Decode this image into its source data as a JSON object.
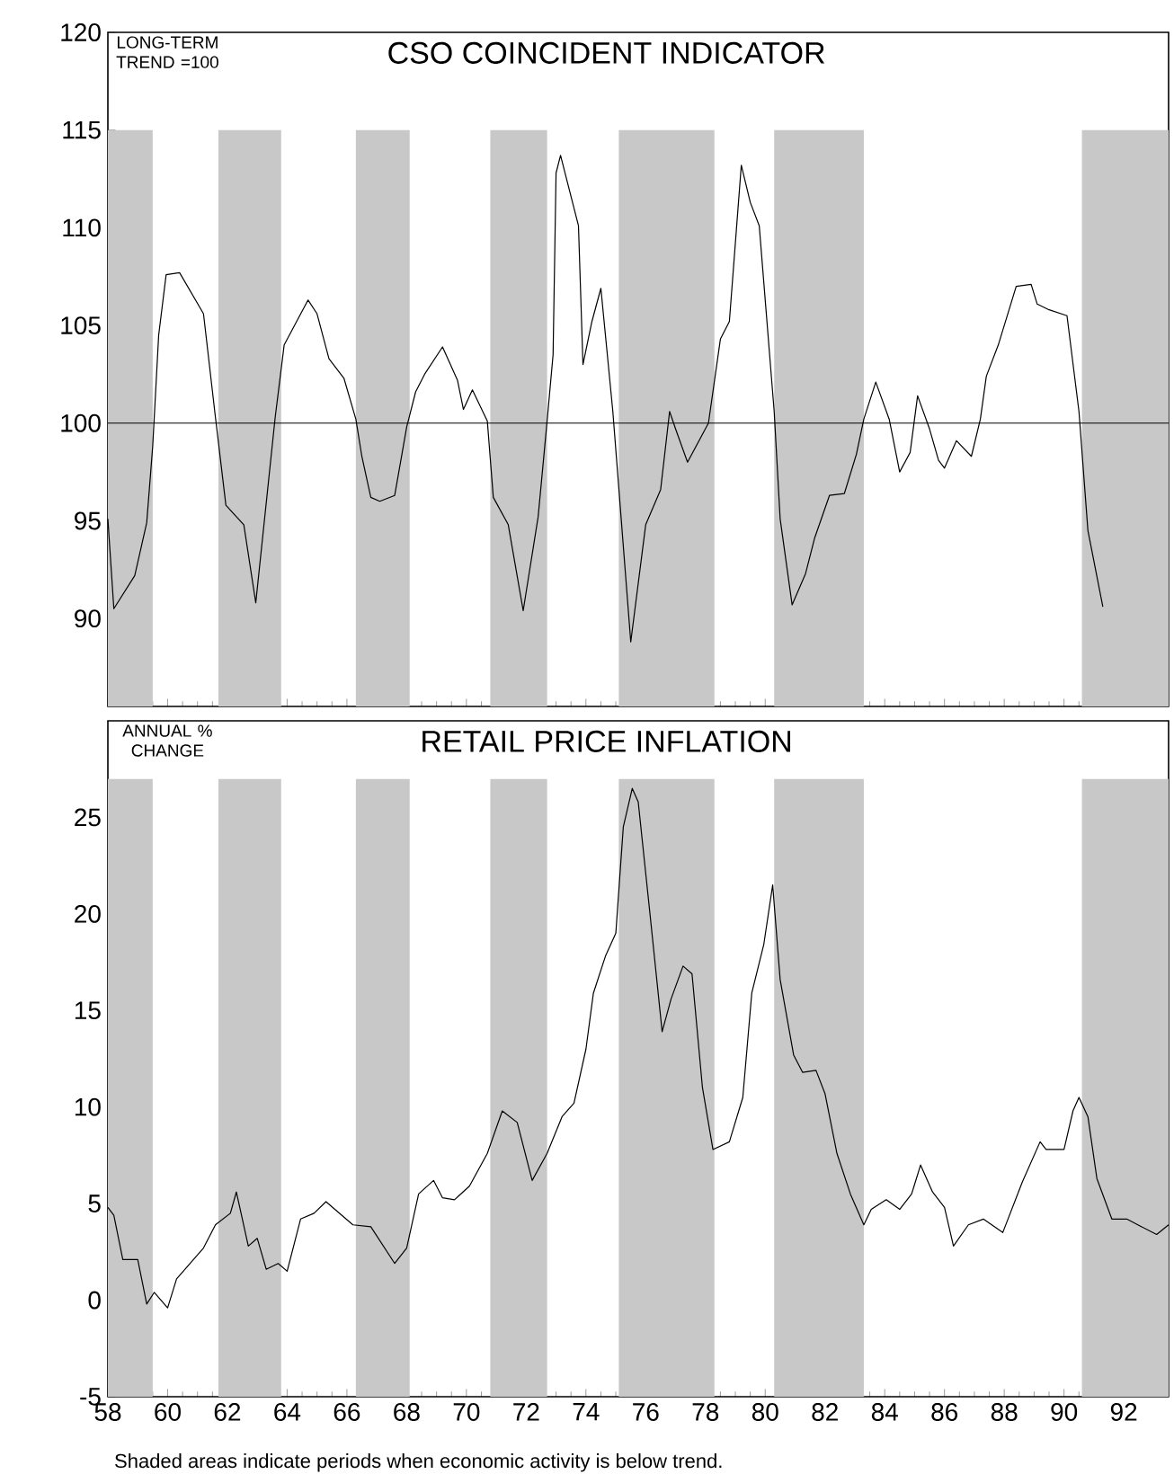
{
  "chart_data": [
    {
      "type": "line",
      "title": "CSO COINCIDENT INDICATOR",
      "ylabel": "LONG-TERM TREND =100",
      "x": [
        58.0,
        58.2,
        58.9,
        59.3,
        59.5,
        59.7,
        59.95,
        60.4,
        61.2,
        61.6,
        61.95,
        62.55,
        62.95,
        63.6,
        63.9,
        64.7,
        65.0,
        65.4,
        65.9,
        66.3,
        66.5,
        66.8,
        67.1,
        67.6,
        68.0,
        68.3,
        68.6,
        69.2,
        69.7,
        69.9,
        70.2,
        70.7,
        70.9,
        71.4,
        71.9,
        72.4,
        72.7,
        72.9,
        73.0,
        73.15,
        73.75,
        73.9,
        74.2,
        74.5,
        74.9,
        75.5,
        76.0,
        76.5,
        76.8,
        77.0,
        77.4,
        78.1,
        78.5,
        78.8,
        79.2,
        79.5,
        79.8,
        80.3,
        80.5,
        80.9,
        81.35,
        81.65,
        82.15,
        82.65,
        83.05,
        83.3,
        83.7,
        84.15,
        84.5,
        84.85,
        85.1,
        85.5,
        85.8,
        86.0,
        86.4,
        86.9,
        87.2,
        87.4,
        87.8,
        88.4,
        88.9,
        89.1,
        89.5,
        90.1,
        90.5,
        90.8,
        91.3
      ],
      "values": [
        95.1,
        90.5,
        92.2,
        94.9,
        98.8,
        104.5,
        107.6,
        107.7,
        105.6,
        100.3,
        95.8,
        94.8,
        90.8,
        100.3,
        104.0,
        106.3,
        105.6,
        103.3,
        102.3,
        100.2,
        98.3,
        96.2,
        96.0,
        96.3,
        99.8,
        101.6,
        102.5,
        103.9,
        102.2,
        100.7,
        101.7,
        100.1,
        96.2,
        94.8,
        90.4,
        95.2,
        100.1,
        103.5,
        112.8,
        113.7,
        110.1,
        103.0,
        105.2,
        106.9,
        100.6,
        88.8,
        94.8,
        96.6,
        100.6,
        99.7,
        98.0,
        100.0,
        104.3,
        105.2,
        113.2,
        111.3,
        110.1,
        100.6,
        95.1,
        90.7,
        92.3,
        94.1,
        96.3,
        96.4,
        98.4,
        100.2,
        102.1,
        100.2,
        97.5,
        98.5,
        101.4,
        99.7,
        98.1,
        97.7,
        99.1,
        98.3,
        100.2,
        102.4,
        104.0,
        107.0,
        107.1,
        106.1,
        105.8,
        105.5,
        100.6,
        94.5,
        90.6
      ],
      "color": "#000000",
      "xlim": [
        58,
        93.5
      ],
      "xticks": [
        58,
        60,
        62,
        64,
        66,
        68,
        70,
        72,
        74,
        76,
        78,
        80,
        82,
        84,
        86,
        88,
        90,
        92
      ],
      "ylim": [
        85.5,
        120
      ],
      "yticks": [
        90,
        95,
        100,
        105,
        110,
        115,
        120
      ],
      "tick_labels": "y",
      "ref_lines": [
        {
          "axis": "y",
          "value": 100
        }
      ],
      "bands": [
        {
          "axis": "x",
          "from": 58.0,
          "to": 59.5,
          "color": "#c8c8c8"
        },
        {
          "axis": "x",
          "from": 61.7,
          "to": 63.8,
          "color": "#c8c8c8"
        },
        {
          "axis": "x",
          "from": 66.3,
          "to": 68.1,
          "color": "#c8c8c8"
        },
        {
          "axis": "x",
          "from": 70.8,
          "to": 72.7,
          "color": "#c8c8c8"
        },
        {
          "axis": "x",
          "from": 75.1,
          "to": 78.3,
          "color": "#c8c8c8"
        },
        {
          "axis": "x",
          "from": 80.3,
          "to": 83.3,
          "color": "#c8c8c8"
        },
        {
          "axis": "x",
          "from": 90.6,
          "to": 93.5,
          "color": "#c8c8c8"
        }
      ]
    },
    {
      "type": "line",
      "title": "RETAIL PRICE INFLATION",
      "ylabel": "ANNUAL % CHANGE",
      "x": [
        58.0,
        58.2,
        58.5,
        59.0,
        59.3,
        59.55,
        60.0,
        60.3,
        61.2,
        61.6,
        62.1,
        62.3,
        62.7,
        63.0,
        63.3,
        63.7,
        64.0,
        64.45,
        64.9,
        65.3,
        66.2,
        66.8,
        67.6,
        68.0,
        68.4,
        68.9,
        69.2,
        69.6,
        70.1,
        70.7,
        71.2,
        71.7,
        72.2,
        72.7,
        73.2,
        73.6,
        74.0,
        74.25,
        74.65,
        75.0,
        75.25,
        75.55,
        75.75,
        76.15,
        76.55,
        76.85,
        77.25,
        77.55,
        77.9,
        78.25,
        78.8,
        79.25,
        79.55,
        79.95,
        80.25,
        80.5,
        80.95,
        81.25,
        81.7,
        82.0,
        82.4,
        82.85,
        83.3,
        83.55,
        84.05,
        84.5,
        84.9,
        85.2,
        85.6,
        86.0,
        86.3,
        86.8,
        87.3,
        87.95,
        88.6,
        89.2,
        89.4,
        90.0,
        90.3,
        90.5,
        90.8,
        91.1,
        91.6,
        92.1,
        92.6,
        93.1,
        93.5
      ],
      "values": [
        4.8,
        4.4,
        2.1,
        2.1,
        -0.2,
        0.4,
        -0.4,
        1.1,
        2.7,
        3.9,
        4.5,
        5.6,
        2.8,
        3.2,
        1.6,
        1.9,
        1.5,
        4.2,
        4.5,
        5.1,
        3.9,
        3.8,
        1.9,
        2.7,
        5.5,
        6.2,
        5.3,
        5.2,
        5.9,
        7.6,
        9.8,
        9.2,
        6.2,
        7.6,
        9.5,
        10.2,
        13.0,
        15.9,
        17.8,
        19.0,
        24.5,
        26.5,
        25.8,
        19.9,
        13.9,
        15.6,
        17.3,
        16.9,
        11.0,
        7.8,
        8.2,
        10.5,
        15.9,
        18.4,
        21.5,
        16.6,
        12.7,
        11.8,
        11.9,
        10.7,
        7.6,
        5.5,
        3.9,
        4.7,
        5.2,
        4.7,
        5.5,
        7.0,
        5.6,
        4.8,
        2.8,
        3.9,
        4.2,
        3.5,
        6.1,
        8.2,
        7.8,
        7.8,
        9.8,
        10.5,
        9.5,
        6.3,
        4.2,
        4.2,
        3.8,
        3.4,
        3.9
      ],
      "color": "#000000",
      "xlim": [
        58,
        93.5
      ],
      "xticks": [
        58,
        60,
        62,
        64,
        66,
        68,
        70,
        72,
        74,
        76,
        78,
        80,
        82,
        84,
        86,
        88,
        90,
        92
      ],
      "ylim": [
        -5,
        30
      ],
      "yticks": [
        -5,
        0,
        5,
        10,
        15,
        20,
        25
      ],
      "bands": [
        {
          "axis": "x",
          "from": 58.0,
          "to": 59.5,
          "color": "#c8c8c8"
        },
        {
          "axis": "x",
          "from": 61.7,
          "to": 63.8,
          "color": "#c8c8c8"
        },
        {
          "axis": "x",
          "from": 66.3,
          "to": 68.1,
          "color": "#c8c8c8"
        },
        {
          "axis": "x",
          "from": 70.8,
          "to": 72.7,
          "color": "#c8c8c8"
        },
        {
          "axis": "x",
          "from": 75.1,
          "to": 78.3,
          "color": "#c8c8c8"
        },
        {
          "axis": "x",
          "from": 80.3,
          "to": 83.3,
          "color": "#c8c8c8"
        },
        {
          "axis": "x",
          "from": 90.6,
          "to": 93.5,
          "color": "#c8c8c8"
        }
      ],
      "annotations": [
        "Shaded areas indicate periods when economic activity is below trend."
      ]
    }
  ]
}
